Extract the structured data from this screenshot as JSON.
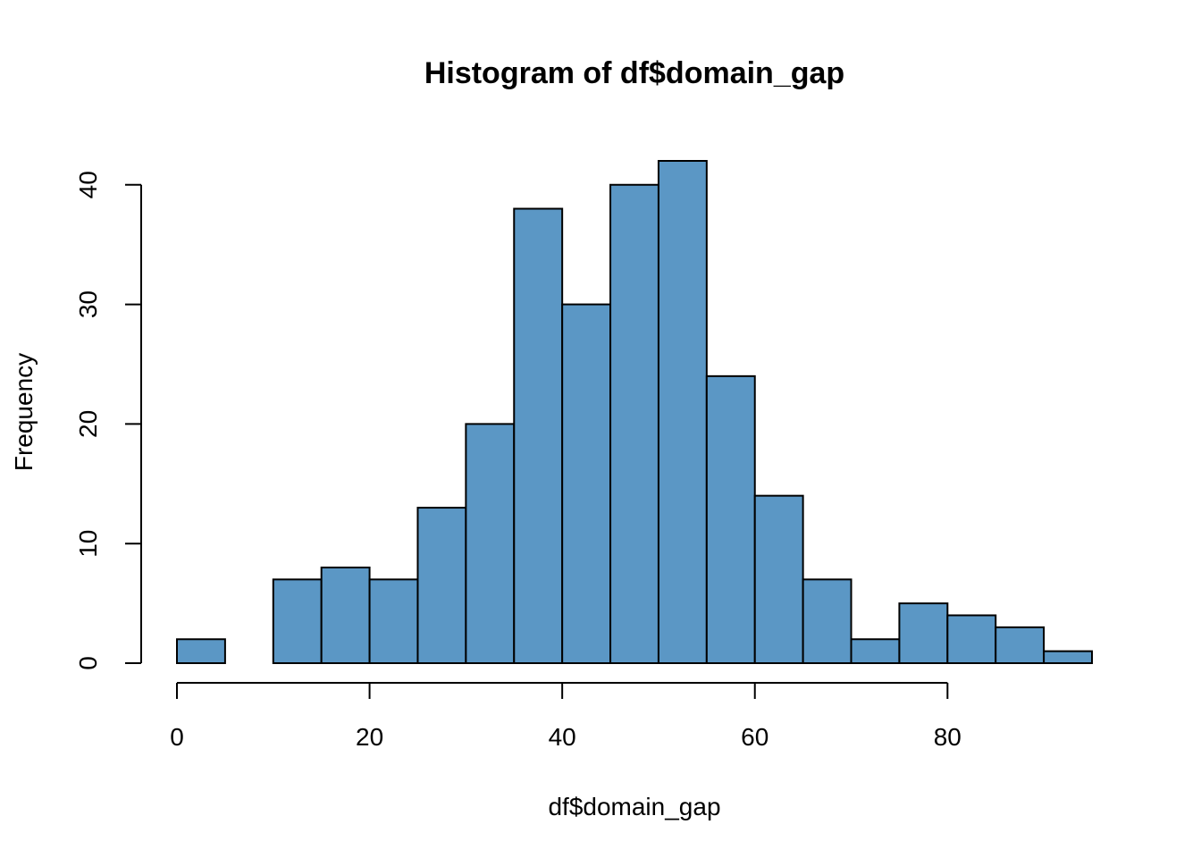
{
  "chart_data": {
    "type": "bar",
    "title": "Histogram of df$domain_gap",
    "xlabel": "df$domain_gap",
    "ylabel": "Frequency",
    "bin_edges": [
      0,
      5,
      10,
      15,
      20,
      25,
      30,
      35,
      40,
      45,
      50,
      55,
      60,
      65,
      70,
      75,
      80,
      85,
      90,
      95
    ],
    "values": [
      2,
      0,
      7,
      8,
      7,
      13,
      20,
      38,
      30,
      40,
      42,
      24,
      14,
      7,
      2,
      5,
      4,
      3,
      1
    ],
    "x_ticks": [
      0,
      20,
      40,
      60,
      80
    ],
    "y_ticks": [
      0,
      10,
      20,
      30,
      40
    ],
    "xlim": [
      0,
      95
    ],
    "ylim": [
      0,
      42
    ],
    "bar_color": "#5B97C5",
    "grid": false
  }
}
